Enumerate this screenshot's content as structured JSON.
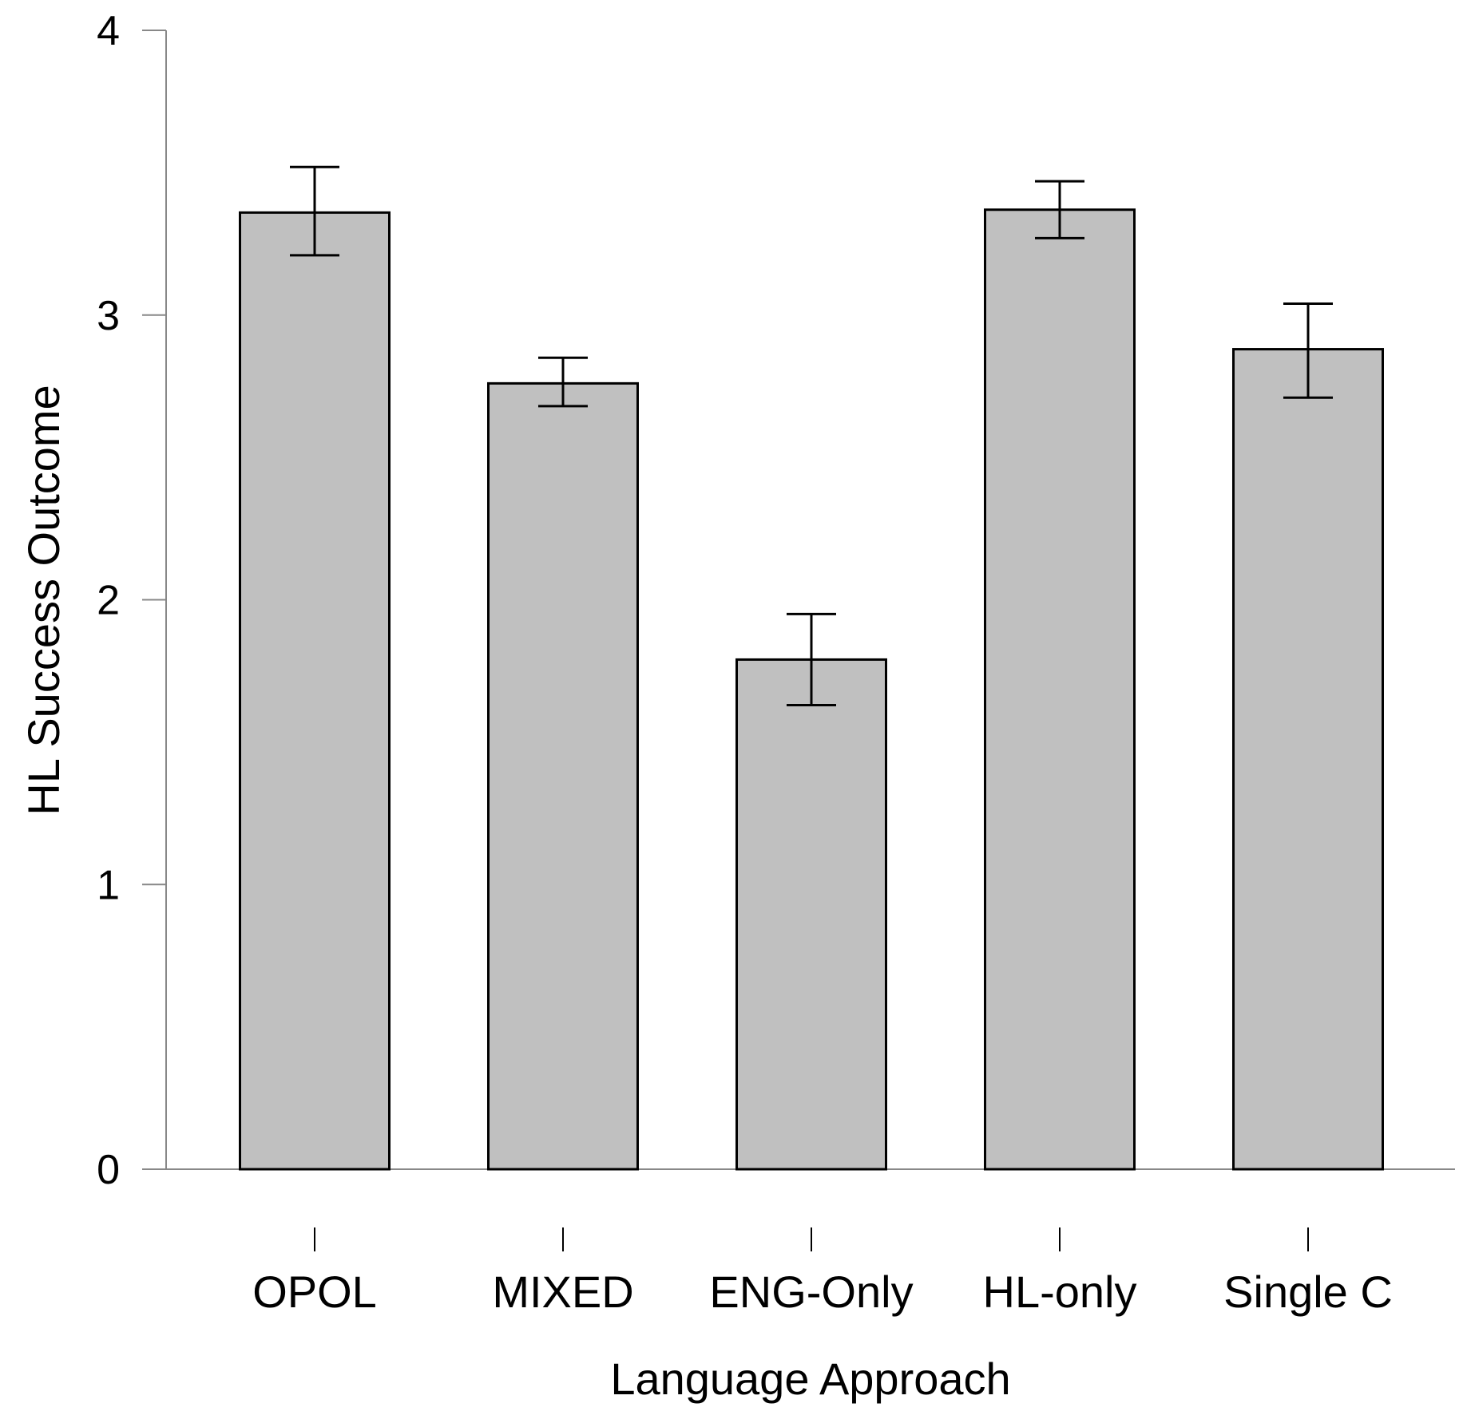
{
  "chart_data": {
    "type": "bar",
    "title": "",
    "xlabel": "Language Approach",
    "ylabel": "HL Success Outcome",
    "categories": [
      "OPOL",
      "MIXED",
      "ENG-Only",
      "HL-only",
      "Single C"
    ],
    "values": [
      3.36,
      2.76,
      1.79,
      3.37,
      2.88
    ],
    "error_bars": {
      "lower": [
        3.21,
        2.68,
        1.63,
        3.27,
        2.71
      ],
      "upper": [
        3.52,
        2.85,
        1.95,
        3.47,
        3.04
      ]
    },
    "ylim": [
      0,
      4
    ],
    "yticks": [
      "0",
      "1",
      "2",
      "3",
      "4"
    ],
    "grid": false,
    "legend": "none",
    "colors": {
      "bar_fill": "#c0c0c0",
      "bar_stroke": "#000000",
      "axis": "#888888",
      "error_bar": "#000000"
    }
  }
}
